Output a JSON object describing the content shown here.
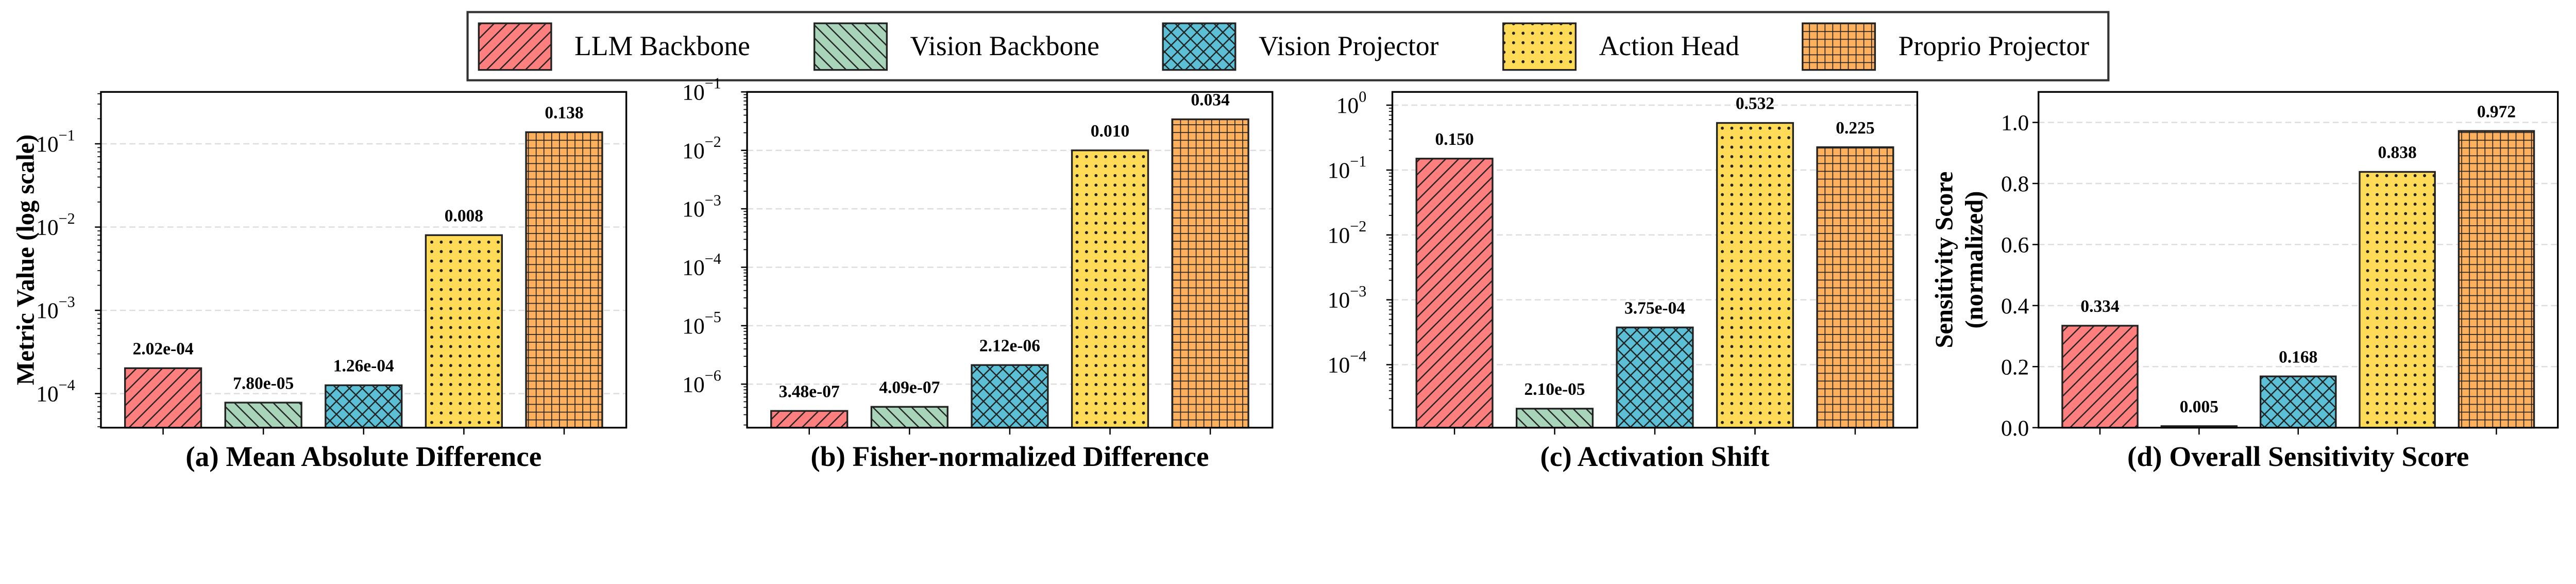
{
  "legend": {
    "placement": "top-center",
    "items": [
      {
        "label": "LLM Backbone",
        "color": "#FF7F7F",
        "hatch": "/"
      },
      {
        "label": "Vision Backbone",
        "color": "#A8D5BA",
        "hatch": "\\"
      },
      {
        "label": "Vision Projector",
        "color": "#5BC0D6",
        "hatch": "x"
      },
      {
        "label": "Action Head",
        "color": "#FFDB58",
        "hatch": "."
      },
      {
        "label": "Proprio Projector",
        "color": "#FFB05C",
        "hatch": "+"
      }
    ]
  },
  "chart_data": [
    {
      "type": "bar",
      "title": "(a) Mean Absolute Difference",
      "ylabel": [
        "Metric Value (log scale)"
      ],
      "yscale": "log",
      "ylim": [
        3.9e-05,
        0.42
      ],
      "yticks": [
        {
          "v": 0.0001,
          "exp": "−4"
        },
        {
          "v": 0.001,
          "exp": "−3"
        },
        {
          "v": 0.01,
          "exp": "−2"
        },
        {
          "v": 0.1,
          "exp": "−1"
        }
      ],
      "grid": true,
      "categories": [
        "LLM Backbone",
        "Vision Backbone",
        "Vision Projector",
        "Action Head",
        "Proprio Projector"
      ],
      "values": [
        0.000202,
        7.8e-05,
        0.000126,
        0.008,
        0.138
      ],
      "value_labels": [
        "2.02e-04",
        "7.80e-05",
        "1.26e-04",
        "0.008",
        "0.138"
      ]
    },
    {
      "type": "bar",
      "title": "(b) Fisher-normalized Difference",
      "ylabel": [],
      "yscale": "log",
      "ylim": [
        1.8e-07,
        0.1
      ],
      "yticks": [
        {
          "v": 1e-06,
          "exp": "−6"
        },
        {
          "v": 1e-05,
          "exp": "−5"
        },
        {
          "v": 0.0001,
          "exp": "−4"
        },
        {
          "v": 0.001,
          "exp": "−3"
        },
        {
          "v": 0.01,
          "exp": "−2"
        },
        {
          "v": 0.1,
          "exp": "−1"
        }
      ],
      "grid": true,
      "categories": [
        "LLM Backbone",
        "Vision Backbone",
        "Vision Projector",
        "Action Head",
        "Proprio Projector"
      ],
      "values": [
        3.48e-07,
        4.09e-07,
        2.12e-06,
        0.01,
        0.034
      ],
      "value_labels": [
        "3.48e-07",
        "4.09e-07",
        "2.12e-06",
        "0.010",
        "0.034"
      ]
    },
    {
      "type": "bar",
      "title": "(c) Activation Shift",
      "ylabel": [],
      "yscale": "log",
      "ylim": [
        1.07e-05,
        1.6
      ],
      "yticks": [
        {
          "v": 0.0001,
          "exp": "−4"
        },
        {
          "v": 0.001,
          "exp": "−3"
        },
        {
          "v": 0.01,
          "exp": "−2"
        },
        {
          "v": 0.1,
          "exp": "−1"
        },
        {
          "v": 1,
          "exp": "0"
        }
      ],
      "grid": true,
      "categories": [
        "LLM Backbone",
        "Vision Backbone",
        "Vision Projector",
        "Action Head",
        "Proprio Projector"
      ],
      "values": [
        0.15,
        2.1e-05,
        0.000375,
        0.532,
        0.225
      ],
      "value_labels": [
        "0.150",
        "2.10e-05",
        "3.75e-04",
        "0.532",
        "0.225"
      ]
    },
    {
      "type": "bar",
      "title": "(d) Overall Sensitivity Score",
      "ylabel": [
        "Sensitivity Score",
        "(normalized)"
      ],
      "yscale": "linear",
      "ylim": [
        0,
        1.1
      ],
      "yticks": [
        {
          "v": 0,
          "label": "0.0"
        },
        {
          "v": 0.2,
          "label": "0.2"
        },
        {
          "v": 0.4,
          "label": "0.4"
        },
        {
          "v": 0.6,
          "label": "0.6"
        },
        {
          "v": 0.8,
          "label": "0.8"
        },
        {
          "v": 1.0,
          "label": "1.0"
        }
      ],
      "grid": true,
      "categories": [
        "LLM Backbone",
        "Vision Backbone",
        "Vision Projector",
        "Action Head",
        "Proprio Projector"
      ],
      "values": [
        0.334,
        0.005,
        0.168,
        0.838,
        0.972
      ],
      "value_labels": [
        "0.334",
        "0.005",
        "0.168",
        "0.838",
        "0.972"
      ]
    }
  ]
}
